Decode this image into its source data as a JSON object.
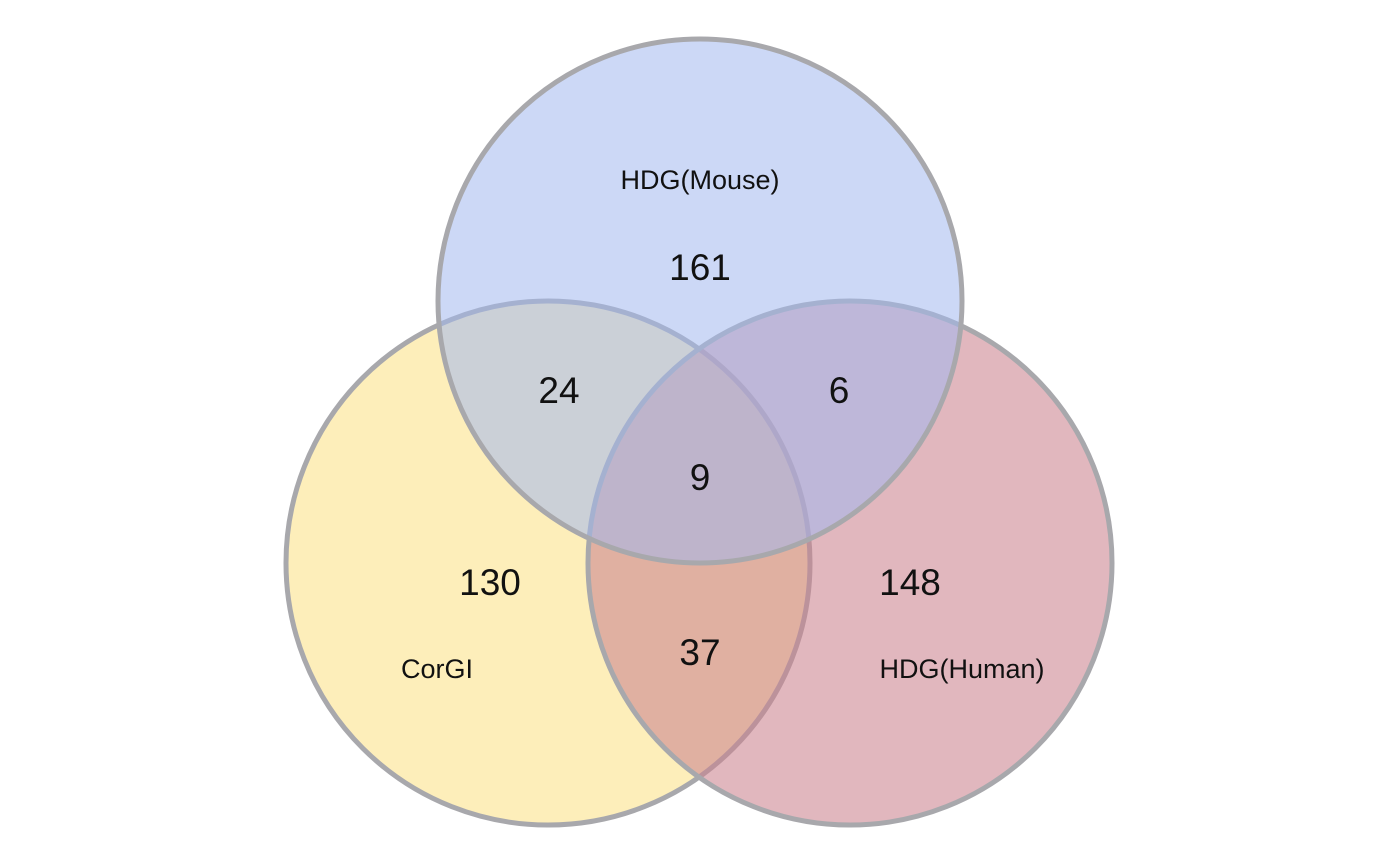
{
  "sets": [
    {
      "key": "mouse",
      "label": "HDG(Mouse)",
      "color": "#a3b8ef",
      "opacity": 0.55
    },
    {
      "key": "corgi",
      "label": "CorGI",
      "color": "#fbe38c",
      "opacity": 0.6
    },
    {
      "key": "human",
      "label": "HDG(Human)",
      "color": "#cb838f",
      "opacity": 0.58
    }
  ],
  "regions": {
    "mouse_only": "161",
    "corgi_only": "130",
    "human_only": "148",
    "mouse_corgi": "24",
    "mouse_human": "6",
    "corgi_human": "37",
    "all_three": "9"
  },
  "outline_color": "#a8a8ac"
}
